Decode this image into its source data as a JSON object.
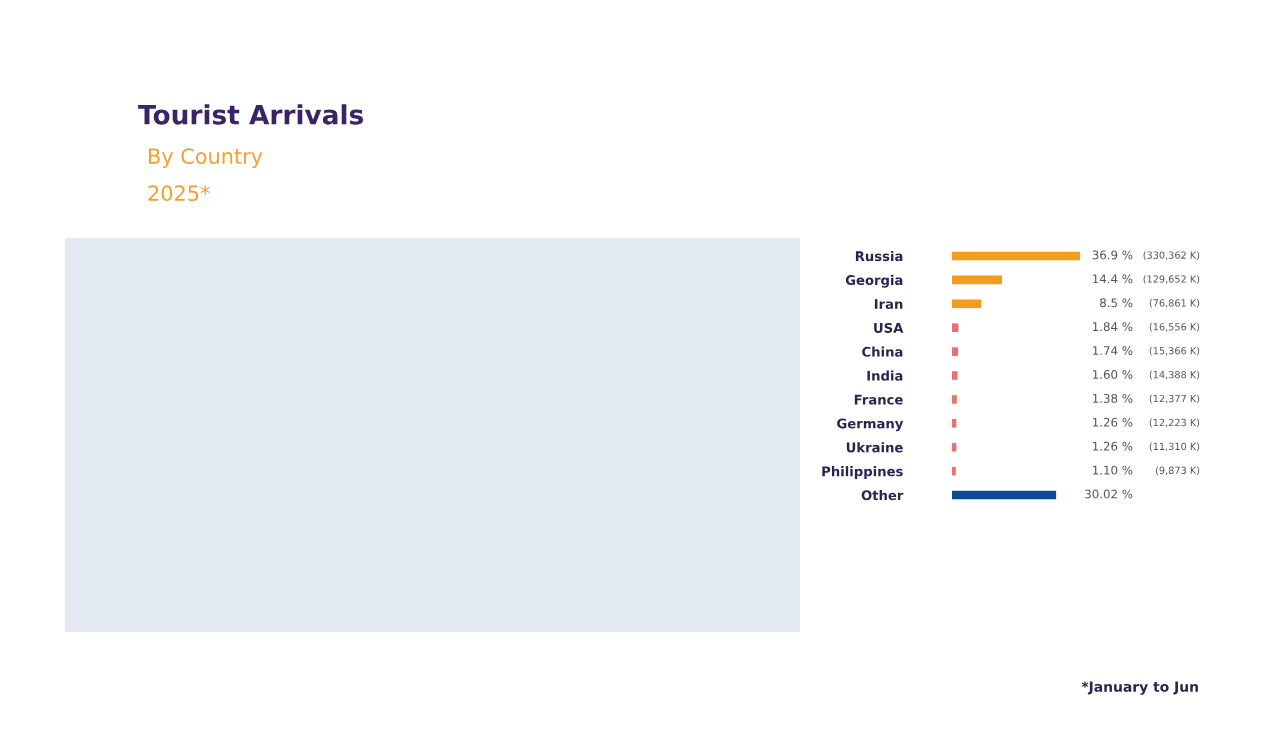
{
  "chart_data": {
    "type": "bar",
    "orientation": "horizontal",
    "title": "Tourist Arrivals",
    "subtitle": "By Country",
    "categories": [
      "Russia",
      "Georgia",
      "Iran",
      "USA",
      "China",
      "India",
      "France",
      "Germany",
      "Ukraine",
      "Philippines",
      "Other"
    ],
    "values": [
      36.9,
      14.4,
      8.5,
      1.84,
      1.74,
      1.6,
      1.38,
      1.26,
      1.26,
      1.1,
      30.02
    ],
    "colors": [
      "#f39c1f",
      "#f39c1f",
      "#f39c1f",
      "#ee6f73",
      "#ee6f73",
      "#ee6f73",
      "#ee6f73",
      "#ee6f73",
      "#ee6f73",
      "#ee6f73",
      "#0f4c97"
    ],
    "value_labels": [
      "36.9 %",
      "14.4 %",
      "8.5 %",
      "1.84 %",
      "1.74 %",
      "1.60 %",
      "1.38 %",
      "1.26 %",
      "1.26 %",
      "1.10 %",
      "30.02 %"
    ],
    "annotations": [
      "2025*",
      "*January to Jun",
      "(330,362 K)",
      "(129,652 K)",
      "(76,861 K)",
      "(16,556 K)",
      "(15,366 K)",
      "(14,388 K)",
      "(12,377 K)",
      "(12,223 K)",
      "(11,310 K)",
      "(9,873 K)"
    ],
    "grid": false,
    "legend": false,
    "tick_labels": "y"
  }
}
